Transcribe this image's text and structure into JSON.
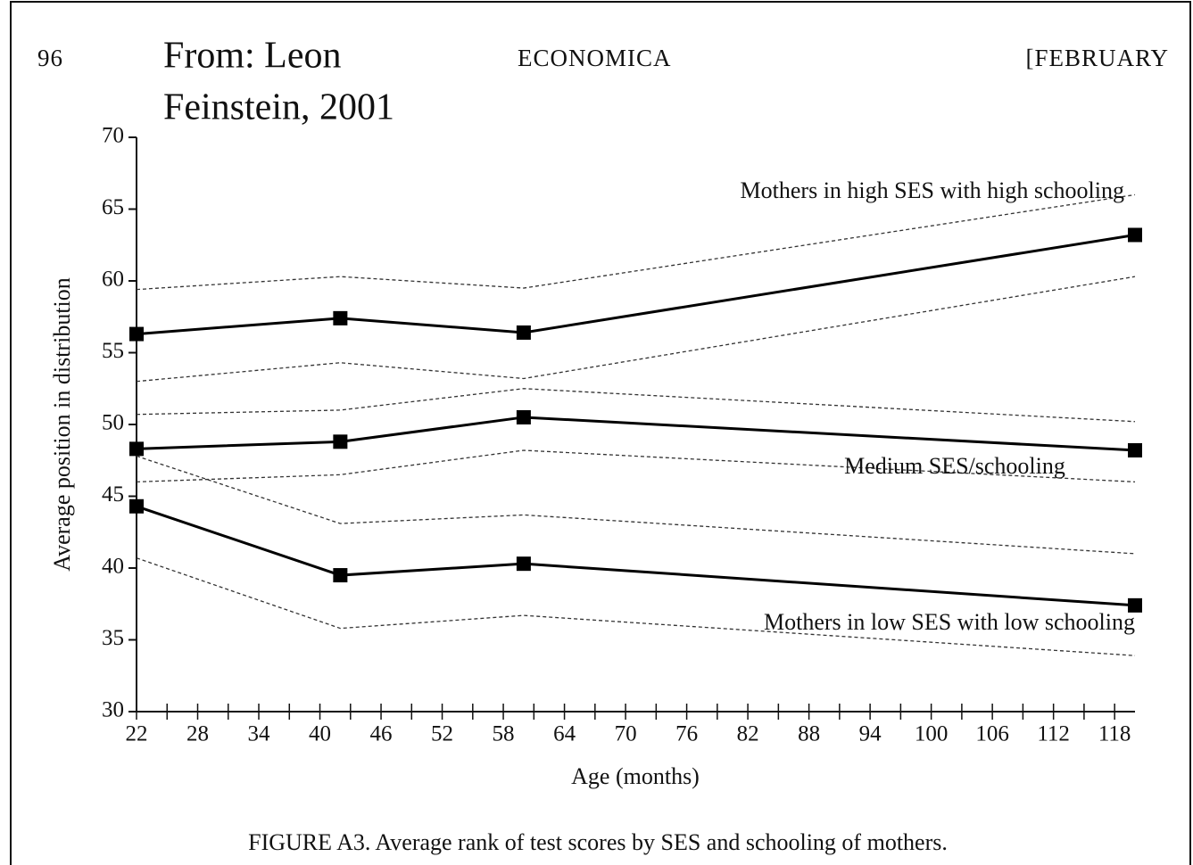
{
  "header": {
    "page": "96",
    "journal": "ECONOMICA",
    "issue": "[FEBRUARY",
    "source": [
      "From: Leon",
      "Feinstein, 2001"
    ]
  },
  "caption": "FIGURE A3.   Average rank of test scores by SES and schooling of mothers.",
  "chart_data": {
    "type": "line",
    "x_label": "Age (months)",
    "y_label": "Average position in distribution",
    "x": [
      22,
      42,
      60,
      120
    ],
    "xlim": [
      22,
      120
    ],
    "xticks": [
      22,
      28,
      34,
      40,
      46,
      52,
      58,
      64,
      70,
      76,
      82,
      88,
      94,
      100,
      106,
      112,
      118
    ],
    "xminorticks": [
      25,
      31,
      37,
      43,
      49,
      55,
      61,
      67,
      73,
      79,
      85,
      91,
      97,
      103,
      109,
      115
    ],
    "ylim": [
      30,
      70
    ],
    "yticks": [
      30,
      35,
      40,
      45,
      50,
      55,
      60,
      65,
      70
    ],
    "color": "#000000",
    "series": [
      {
        "name": "Mothers in high SES with high schooling",
        "values": [
          56.3,
          57.4,
          56.4,
          63.2
        ],
        "upper": [
          59.4,
          60.3,
          59.5,
          66.0
        ],
        "lower": [
          53.0,
          54.3,
          53.2,
          60.3
        ]
      },
      {
        "name": "Medium SES/schooling",
        "values": [
          48.3,
          48.8,
          50.5,
          48.2
        ],
        "upper": [
          50.7,
          51.0,
          52.5,
          50.2
        ],
        "lower": [
          46.0,
          46.5,
          48.2,
          46.0
        ]
      },
      {
        "name": "Mothers in low SES with low schooling",
        "values": [
          44.3,
          39.5,
          40.3,
          37.4
        ],
        "upper": [
          47.8,
          43.1,
          43.7,
          41.0
        ],
        "lower": [
          40.7,
          35.8,
          36.7,
          33.9
        ]
      }
    ]
  }
}
